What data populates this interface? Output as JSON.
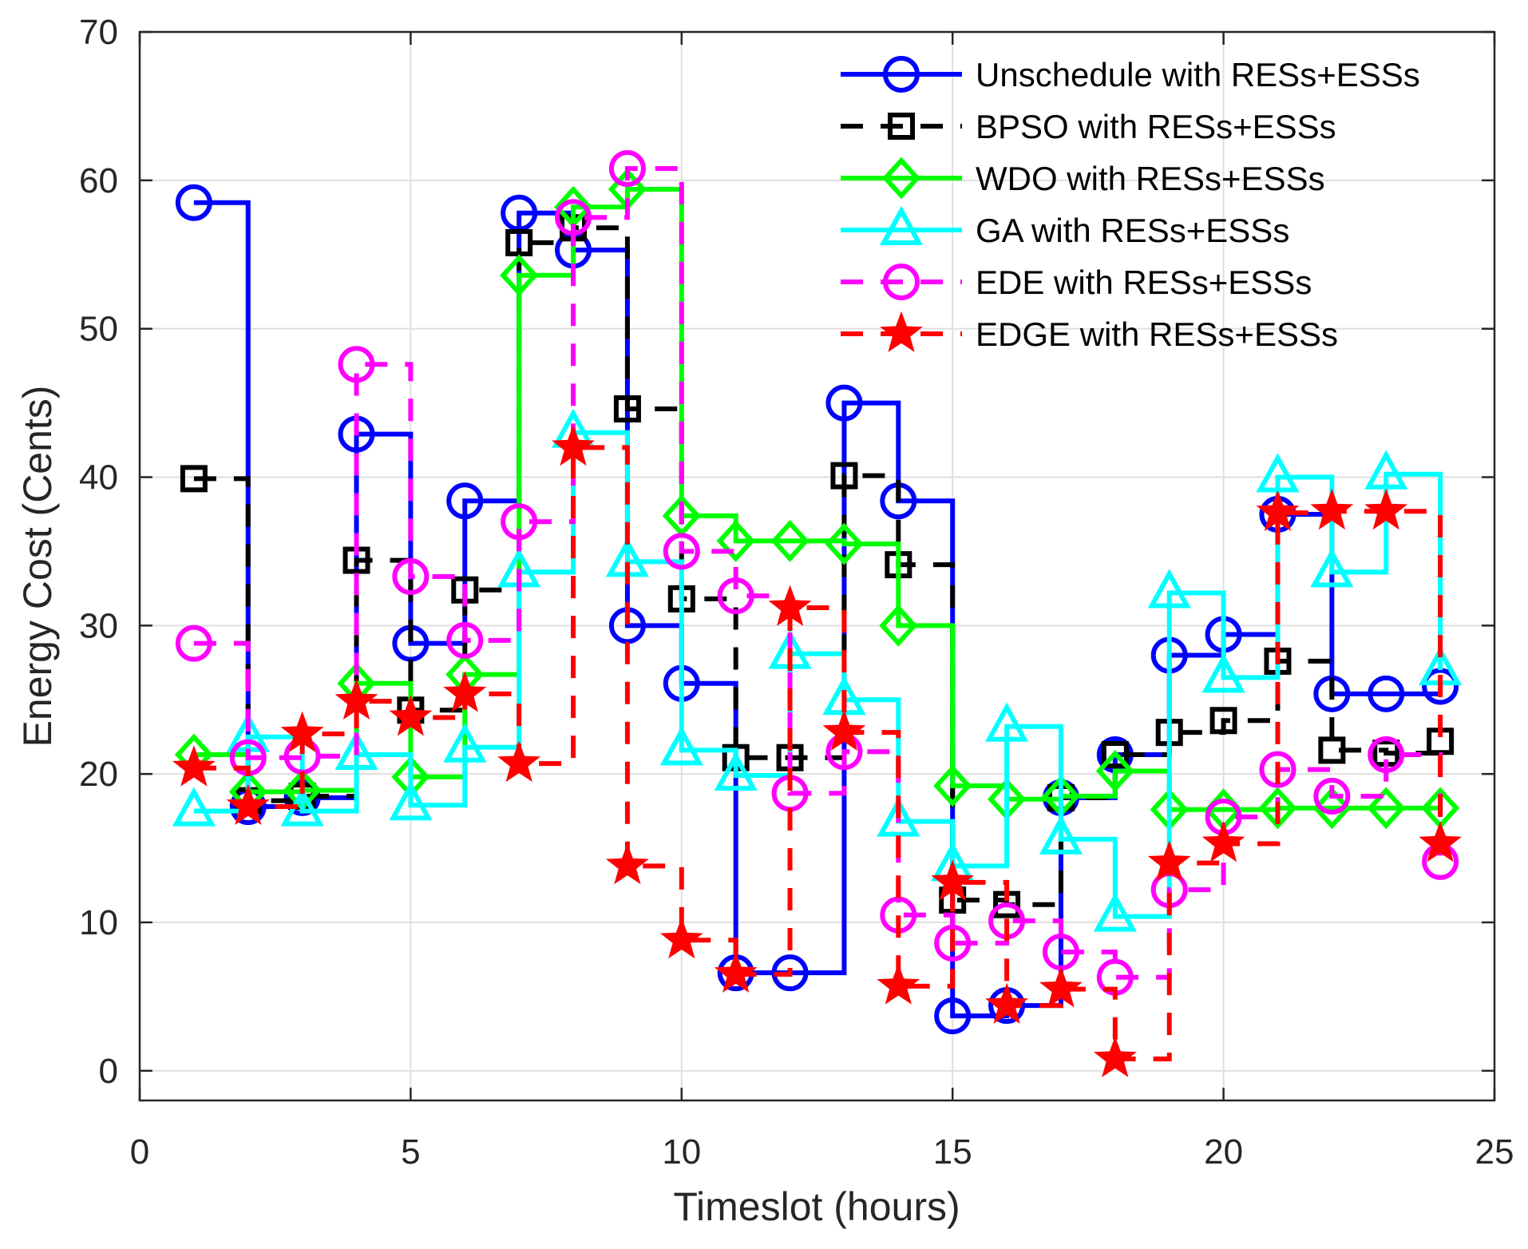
{
  "chart_data": {
    "type": "line",
    "step": "post",
    "title": "",
    "xlabel": "Timeslot (hours)",
    "ylabel": "Energy Cost (Cents)",
    "xlim": [
      0,
      25
    ],
    "ylim": [
      -2,
      70
    ],
    "xticks": [
      0,
      5,
      10,
      15,
      20,
      25
    ],
    "yticks": [
      0,
      10,
      20,
      30,
      40,
      50,
      60,
      70
    ],
    "grid": true,
    "legend_position": "top-right",
    "x": [
      1,
      2,
      3,
      4,
      5,
      6,
      7,
      8,
      9,
      10,
      11,
      12,
      13,
      14,
      15,
      16,
      17,
      18,
      19,
      20,
      21,
      22,
      23,
      24
    ],
    "series": [
      {
        "name": "Unschedule with RESs+ESSs",
        "color": "#0000ff",
        "dash": "solid",
        "marker": "circle",
        "values": [
          58.5,
          17.8,
          18.4,
          42.9,
          28.8,
          38.4,
          57.8,
          55.3,
          30.0,
          26.1,
          6.6,
          6.6,
          45.0,
          38.4,
          3.7,
          4.4,
          18.4,
          21.3,
          28.0,
          29.4,
          37.5,
          25.4,
          25.4,
          25.9
        ]
      },
      {
        "name": "BPSO with RESs+ESSs",
        "color": "#000000",
        "dash": "dashed",
        "marker": "square",
        "values": [
          39.9,
          18.2,
          18.5,
          34.4,
          24.3,
          32.4,
          55.8,
          56.8,
          44.6,
          31.8,
          21.1,
          21.1,
          40.1,
          34.1,
          11.5,
          11.2,
          18.4,
          21.3,
          22.8,
          23.6,
          27.6,
          21.6,
          21.4,
          22.2
        ]
      },
      {
        "name": "WDO with RESs+ESSs",
        "color": "#00ff00",
        "dash": "solid",
        "marker": "diamond",
        "values": [
          21.3,
          18.8,
          18.9,
          26.1,
          19.8,
          26.7,
          53.6,
          58.2,
          59.4,
          37.4,
          35.7,
          35.7,
          35.5,
          30.0,
          19.2,
          18.3,
          18.5,
          20.2,
          17.6,
          17.6,
          17.7,
          17.7,
          17.7,
          17.7
        ]
      },
      {
        "name": "GA with RESs+ESSs",
        "color": "#00ffff",
        "dash": "solid",
        "marker": "triangle",
        "values": [
          17.5,
          22.5,
          17.5,
          21.3,
          17.9,
          21.8,
          33.6,
          43.0,
          34.3,
          21.6,
          19.9,
          28.1,
          25.0,
          16.8,
          13.8,
          23.2,
          15.6,
          10.4,
          32.2,
          26.5,
          40.0,
          33.6,
          40.2,
          27.0
        ]
      },
      {
        "name": "EDE with RESs+ESSs",
        "color": "#ff00ff",
        "dash": "dashed",
        "marker": "circle",
        "values": [
          28.8,
          21.1,
          21.2,
          47.6,
          33.3,
          29.0,
          37.0,
          57.5,
          60.8,
          35.0,
          32.0,
          18.7,
          21.5,
          10.5,
          8.6,
          10.1,
          8.0,
          6.3,
          12.2,
          17.1,
          20.3,
          18.5,
          21.3,
          14.1
        ]
      },
      {
        "name": "EDGE with RESs+ESSs",
        "color": "#ff0000",
        "dash": "dashed",
        "marker": "star",
        "values": [
          20.4,
          17.8,
          22.7,
          24.9,
          23.8,
          25.4,
          20.7,
          42.0,
          13.8,
          8.8,
          6.5,
          31.2,
          22.8,
          5.7,
          12.7,
          4.4,
          5.5,
          0.8,
          14.0,
          15.3,
          37.6,
          37.7,
          37.7,
          15.3
        ]
      }
    ]
  }
}
